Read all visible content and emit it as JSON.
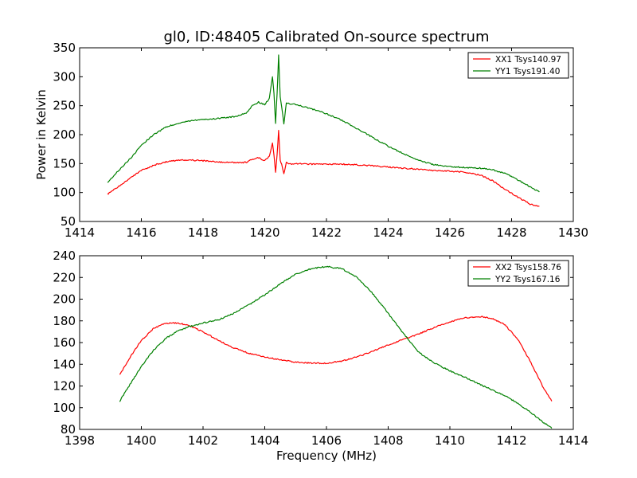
{
  "figure": {
    "title": "gl0, ID:48405 Calibrated On-source spectrum",
    "xlabel": "Frequency (MHz)",
    "ylabel": "Power in Kelvin",
    "colors": {
      "red": "#ff0000",
      "green": "#008000",
      "axes": "#000000",
      "background": "#ffffff"
    }
  },
  "chart_data": [
    {
      "type": "line",
      "xlim": [
        1414,
        1430
      ],
      "ylim": [
        50,
        350
      ],
      "xticks": [
        1414,
        1416,
        1418,
        1420,
        1422,
        1424,
        1426,
        1428,
        1430
      ],
      "yticks": [
        50,
        100,
        150,
        200,
        250,
        300,
        350
      ],
      "grid": false,
      "legend": "top-right",
      "series": [
        {
          "name": "XX1 Tsys140.97",
          "color": "#ff0000",
          "x": [
            1414.9,
            1415.3,
            1415.7,
            1416.0,
            1416.4,
            1416.8,
            1417.2,
            1417.6,
            1418.0,
            1418.5,
            1419.0,
            1419.4,
            1419.6,
            1419.8,
            1420.0,
            1420.15,
            1420.25,
            1420.3,
            1420.35,
            1420.4,
            1420.45,
            1420.5,
            1420.55,
            1420.62,
            1420.7,
            1420.8,
            1421.0,
            1421.5,
            1422.0,
            1422.5,
            1423.0,
            1423.5,
            1424.0,
            1424.5,
            1425.0,
            1425.5,
            1426.0,
            1426.5,
            1427.0,
            1427.4,
            1427.8,
            1428.2,
            1428.6,
            1428.9
          ],
          "y": [
            97,
            112,
            127,
            138,
            147,
            153,
            156,
            156,
            155,
            153,
            152,
            152,
            158,
            160,
            155,
            163,
            185,
            165,
            135,
            165,
            208,
            155,
            148,
            133,
            152,
            149,
            150,
            149,
            149,
            149,
            148,
            146,
            144,
            142,
            140,
            138,
            137,
            135,
            130,
            120,
            105,
            92,
            80,
            76
          ]
        },
        {
          "name": "YY1 Tsys191.40",
          "color": "#008000",
          "x": [
            1414.9,
            1415.3,
            1415.7,
            1416.0,
            1416.4,
            1416.8,
            1417.2,
            1417.6,
            1418.0,
            1418.5,
            1419.0,
            1419.4,
            1419.6,
            1419.8,
            1420.0,
            1420.15,
            1420.25,
            1420.3,
            1420.35,
            1420.4,
            1420.45,
            1420.5,
            1420.55,
            1420.62,
            1420.7,
            1420.8,
            1421.0,
            1421.5,
            1422.0,
            1422.5,
            1423.0,
            1423.5,
            1424.0,
            1424.5,
            1425.0,
            1425.5,
            1426.0,
            1426.5,
            1427.0,
            1427.4,
            1427.8,
            1428.2,
            1428.6,
            1428.9
          ],
          "y": [
            117,
            140,
            162,
            182,
            200,
            213,
            220,
            224,
            226,
            228,
            231,
            237,
            250,
            256,
            252,
            263,
            300,
            270,
            220,
            270,
            338,
            265,
            248,
            218,
            255,
            253,
            252,
            245,
            236,
            225,
            210,
            195,
            180,
            167,
            155,
            148,
            145,
            143,
            142,
            139,
            133,
            122,
            110,
            101
          ]
        }
      ]
    },
    {
      "type": "line",
      "xlim": [
        1398,
        1414
      ],
      "ylim": [
        80,
        240
      ],
      "xticks": [
        1398,
        1400,
        1402,
        1404,
        1406,
        1408,
        1410,
        1412,
        1414
      ],
      "yticks": [
        80,
        100,
        120,
        140,
        160,
        180,
        200,
        220,
        240
      ],
      "grid": false,
      "legend": "top-right",
      "series": [
        {
          "name": "XX2 Tsys158.76",
          "color": "#ff0000",
          "x": [
            1399.3,
            1399.6,
            1400.0,
            1400.4,
            1400.8,
            1401.2,
            1401.6,
            1402.0,
            1402.5,
            1403.0,
            1403.5,
            1404.0,
            1404.5,
            1405.0,
            1405.5,
            1406.0,
            1406.5,
            1407.0,
            1407.5,
            1408.0,
            1408.5,
            1409.0,
            1409.5,
            1410.0,
            1410.5,
            1411.0,
            1411.4,
            1411.8,
            1412.2,
            1412.6,
            1413.0,
            1413.3
          ],
          "y": [
            130,
            145,
            162,
            173,
            178,
            178,
            175,
            170,
            162,
            155,
            150,
            147,
            144,
            142,
            141,
            141,
            143,
            147,
            152,
            158,
            163,
            168,
            174,
            179,
            183,
            184,
            182,
            176,
            163,
            143,
            120,
            106
          ]
        },
        {
          "name": "YY2 Tsys167.16",
          "color": "#008000",
          "x": [
            1399.3,
            1399.6,
            1400.0,
            1400.4,
            1400.8,
            1401.2,
            1401.6,
            1402.0,
            1402.5,
            1403.0,
            1403.5,
            1404.0,
            1404.5,
            1405.0,
            1405.5,
            1406.0,
            1406.5,
            1407.0,
            1407.5,
            1408.0,
            1408.5,
            1409.0,
            1409.5,
            1410.0,
            1410.5,
            1411.0,
            1411.4,
            1411.8,
            1412.2,
            1412.6,
            1413.0,
            1413.3
          ],
          "y": [
            106,
            120,
            138,
            153,
            164,
            171,
            175,
            178,
            181,
            187,
            195,
            204,
            214,
            223,
            228,
            230,
            228,
            220,
            205,
            187,
            168,
            151,
            141,
            134,
            128,
            121,
            116,
            111,
            104,
            96,
            87,
            81
          ]
        }
      ]
    }
  ]
}
